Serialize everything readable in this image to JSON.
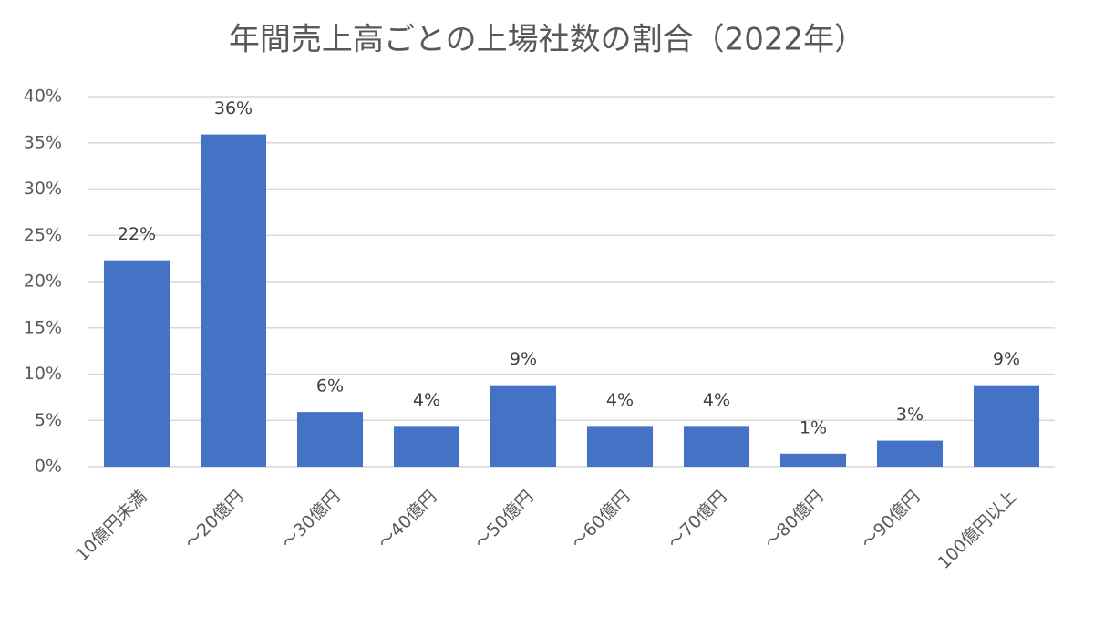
{
  "chart_data": {
    "type": "bar",
    "title": "年間売上高ごとの上場社数の割合（2022年）",
    "categories": [
      "10億円未満",
      "～20億円",
      "～30億円",
      "～40億円",
      "～50億円",
      "～60億円",
      "～70億円",
      "～80億円",
      "～90億円",
      "100億円以上"
    ],
    "values": [
      22.3,
      35.9,
      5.9,
      4.4,
      8.8,
      4.4,
      4.4,
      1.4,
      2.8,
      8.8
    ],
    "value_labels": [
      "22%",
      "36%",
      "6%",
      "4%",
      "9%",
      "4%",
      "4%",
      "1%",
      "3%",
      "9%"
    ],
    "color": "#4472c4",
    "ylim": [
      0,
      40
    ],
    "yticks": [
      {
        "value": 0,
        "label": "0%"
      },
      {
        "value": 5,
        "label": "5%"
      },
      {
        "value": 10,
        "label": "10%"
      },
      {
        "value": 15,
        "label": "15%"
      },
      {
        "value": 20,
        "label": "20%"
      },
      {
        "value": 25,
        "label": "25%"
      },
      {
        "value": 30,
        "label": "30%"
      },
      {
        "value": 35,
        "label": "35%"
      },
      {
        "value": 40,
        "label": "40%"
      }
    ],
    "grid": true
  }
}
